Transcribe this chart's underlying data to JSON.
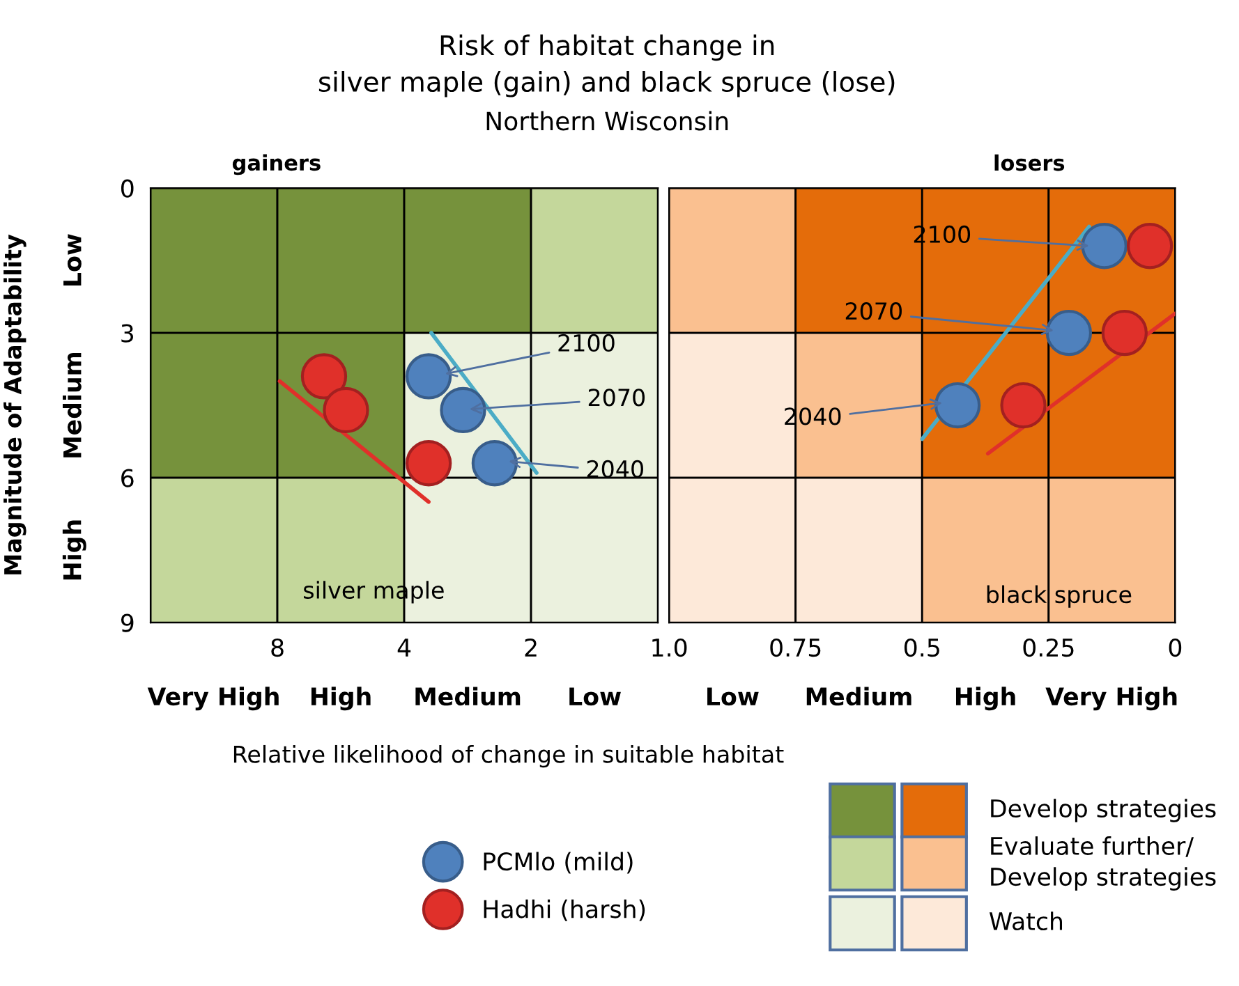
{
  "chart_data": [
    {
      "type": "scatter",
      "title": "gainers",
      "ylabel": "Magnitude of Adaptability",
      "log": "x",
      "xlim": [
        16,
        1
      ],
      "ylim": [
        9,
        0
      ],
      "xticks": [
        8,
        4,
        2,
        {
          "value": 1,
          "label": null
        }
      ],
      "yticks": [
        0,
        3,
        6,
        9
      ],
      "series": [
        {
          "name": "PCMlo (mild)",
          "color": "#4f81bd",
          "x": [
            3.5,
            2.9,
            2.44
          ],
          "values": [
            3.9,
            4.6,
            5.7
          ]
        },
        {
          "name": "Hadhi (harsh)",
          "color": "#e0302a",
          "x": [
            6.2,
            5.5,
            3.5
          ],
          "values": [
            3.9,
            4.6,
            5.7
          ]
        },
        {
          "type": "line",
          "marker": "none",
          "color": "#4bacc6",
          "x": [
            3.45,
            1.94
          ],
          "values": [
            3.0,
            5.9
          ]
        },
        {
          "type": "line",
          "marker": "none",
          "color": "#e0302a",
          "x": [
            7.9,
            3.5
          ],
          "values": [
            4.0,
            6.5
          ]
        }
      ],
      "annotations": [
        {
          "text": "2100",
          "x": 3.2,
          "y": 3.85
        },
        {
          "text": "2070",
          "x": 2.8,
          "y": 4.58
        },
        {
          "text": "2040",
          "x": 2.26,
          "y": 5.66
        },
        "silver maple",
        "Very High",
        "High",
        "Medium",
        "Low",
        "Low",
        "Medium",
        "High"
      ],
      "marker": "circle",
      "legend": "bottom",
      "grid": false
    },
    {
      "type": "scatter",
      "title": "losers",
      "xlim": [
        1,
        0
      ],
      "ylim": [
        9,
        0
      ],
      "xticks": [
        {
          "value": 1,
          "label": "1.0"
        },
        0.75,
        0.5,
        0.25,
        0
      ],
      "yticks": [
        0,
        3,
        6,
        9
      ],
      "tick_labels": "x",
      "series": [
        {
          "name": "PCMlo (mild)",
          "color": "#4f81bd",
          "x": [
            0.14,
            0.21,
            0.43
          ],
          "values": [
            1.2,
            3.0,
            4.5
          ]
        },
        {
          "name": "Hadhi (harsh)",
          "color": "#e0302a",
          "x": [
            0.05,
            0.1,
            0.3
          ],
          "values": [
            1.2,
            3.0,
            4.5
          ]
        },
        {
          "type": "line",
          "marker": "none",
          "color": "#4bacc6",
          "x": [
            0.5,
            0.17
          ],
          "values": [
            5.2,
            0.8
          ]
        },
        {
          "type": "line",
          "marker": "none",
          "color": "#e0302a",
          "x": [
            0.37,
            0.0
          ],
          "values": [
            5.5,
            2.6
          ]
        }
      ],
      "annotations": [
        {
          "text": "2100",
          "x": 0.17,
          "y": 1.2
        },
        {
          "text": "2070",
          "x": 0.24,
          "y": 2.95
        },
        {
          "text": "2040",
          "x": 0.46,
          "y": 4.45
        },
        "black spruce",
        "Low",
        "Medium",
        "High",
        "Very High"
      ],
      "marker": "circle",
      "grid": false
    },
    {
      "type": "other",
      "title": "Risk of habitat change in\nsilver maple (gain) and black spruce (lose)",
      "subtitle": "Northern Wisconsin",
      "xlabel": "Relative likelihood of change in suitable habitat",
      "categories": [
        "Develop strategies",
        "Evaluate further/\nDevelop strategies",
        "Watch"
      ]
    }
  ]
}
